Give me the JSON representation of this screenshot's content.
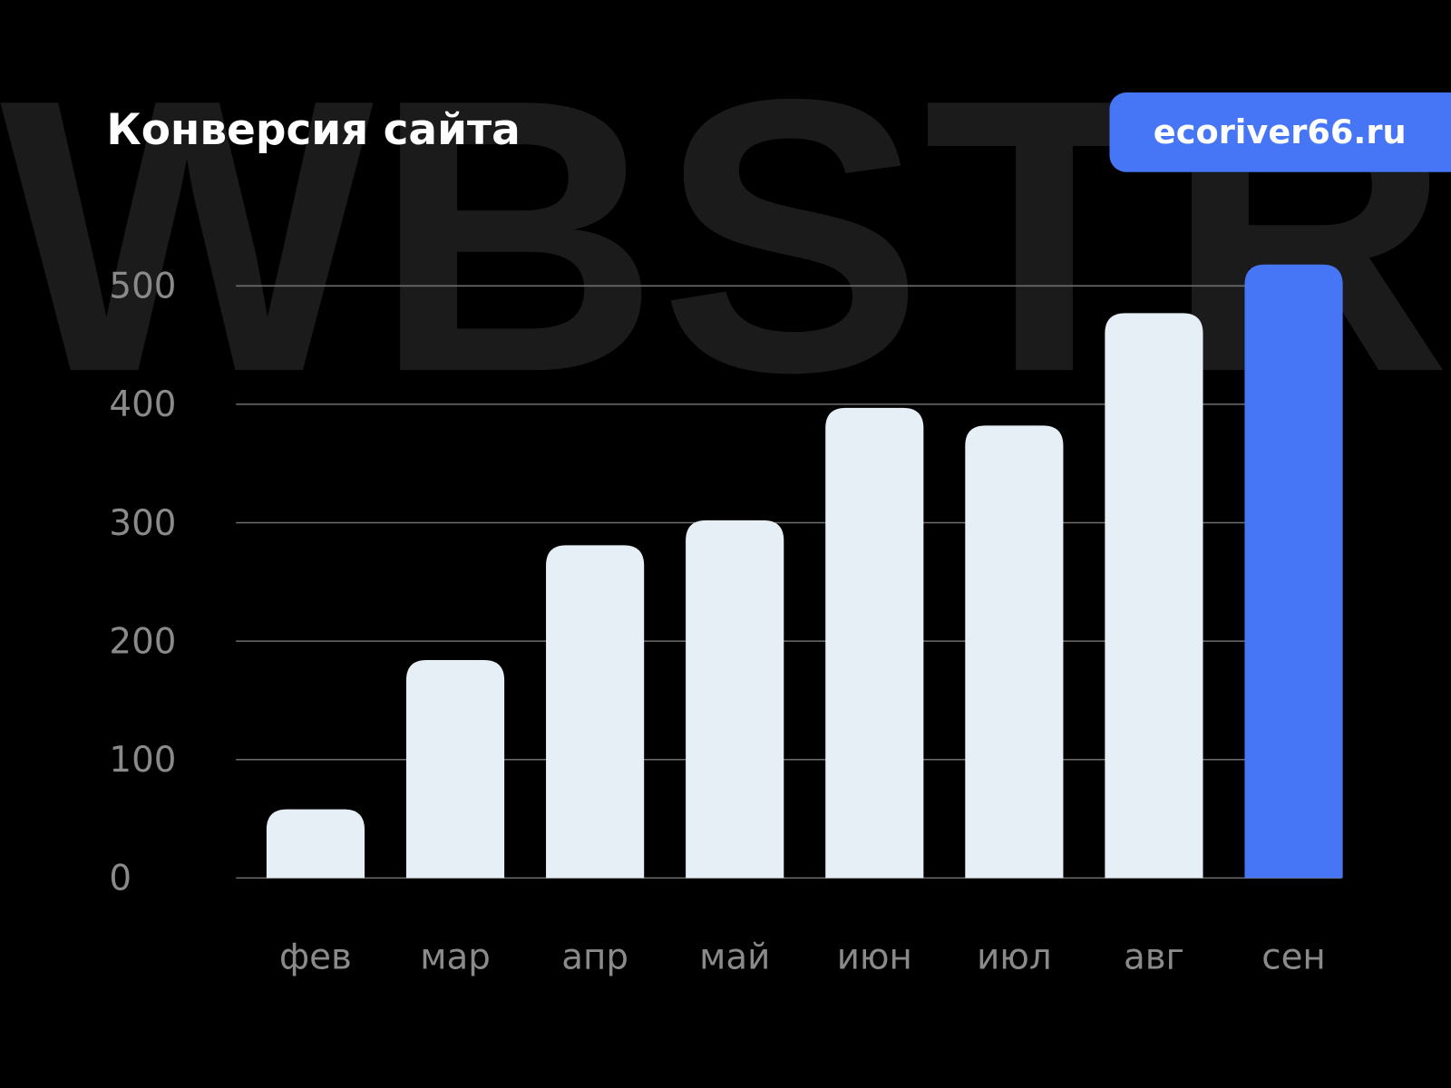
{
  "watermark": "WBSTR",
  "header": {
    "title": "Конверсия сайта",
    "badge": "ecoriver66.ru"
  },
  "colors": {
    "background": "#000000",
    "bar": "#e6eef6",
    "highlight": "#4676f5",
    "grid": "#6e6e6e",
    "watermark": "#1b1b1b"
  },
  "chart_data": {
    "type": "bar",
    "title": "Конверсия сайта",
    "categories": [
      "фев",
      "мар",
      "апр",
      "май",
      "июн",
      "июл",
      "авг",
      "сен"
    ],
    "values": [
      58,
      184,
      281,
      302,
      397,
      382,
      477,
      518
    ],
    "highlighted": [
      "сен"
    ],
    "ylim": [
      0,
      500
    ],
    "yticks": [
      0,
      100,
      200,
      300,
      400,
      500
    ],
    "xlabel": "",
    "ylabel": "",
    "grid": true,
    "legend": "none"
  }
}
